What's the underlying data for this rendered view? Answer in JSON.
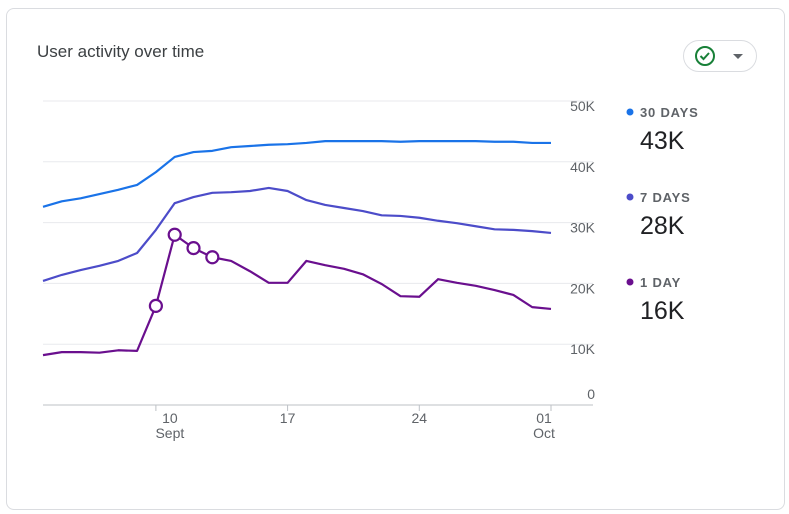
{
  "chart_data": {
    "type": "line",
    "title": "User activity over time",
    "categories": [
      null,
      null,
      null,
      null,
      null,
      null,
      "10\nSept",
      null,
      null,
      null,
      null,
      null,
      null,
      "17",
      null,
      null,
      null,
      null,
      null,
      null,
      "24",
      null,
      null,
      null,
      null,
      null,
      null,
      "01\nOct"
    ],
    "series": [
      {
        "name": "30 DAYS",
        "color": "#1a73e8",
        "summary_label": "43K",
        "values": [
          32600,
          33500,
          34000,
          34700,
          35400,
          36200,
          38300,
          40800,
          41600,
          41800,
          42400,
          42600,
          42800,
          42900,
          43100,
          43400,
          43400,
          43400,
          43400,
          43300,
          43400,
          43400,
          43400,
          43400,
          43300,
          43300,
          43100,
          43100
        ]
      },
      {
        "name": "7 DAYS",
        "color": "#4c4cc9",
        "summary_label": "28K",
        "values": [
          20400,
          21400,
          22200,
          22900,
          23700,
          25000,
          28800,
          33200,
          34200,
          34900,
          35000,
          35200,
          35700,
          35200,
          33700,
          32900,
          32400,
          31900,
          31200,
          31100,
          30800,
          30300,
          29900,
          29400,
          28900,
          28800,
          28600,
          28300
        ]
      },
      {
        "name": "1 DAY",
        "color": "#6a0f8e",
        "summary_label": "16K",
        "markers": [
          6,
          7,
          8,
          9
        ],
        "values": [
          8200,
          8700,
          8700,
          8600,
          9000,
          8900,
          16300,
          28000,
          25800,
          24300,
          23700,
          22000,
          20100,
          20100,
          23700,
          23000,
          22400,
          21500,
          19900,
          17900,
          17800,
          20700,
          20100,
          19600,
          18900,
          18100,
          16100,
          15800
        ]
      }
    ],
    "ylim": [
      0,
      50000
    ],
    "yticks": [
      {
        "value": 0,
        "label": "0"
      },
      {
        "value": 10000,
        "label": "10K"
      },
      {
        "value": 20000,
        "label": "20K"
      },
      {
        "value": 30000,
        "label": "30K"
      },
      {
        "value": 40000,
        "label": "40K"
      },
      {
        "value": 50000,
        "label": "50K"
      }
    ],
    "grid": true
  }
}
